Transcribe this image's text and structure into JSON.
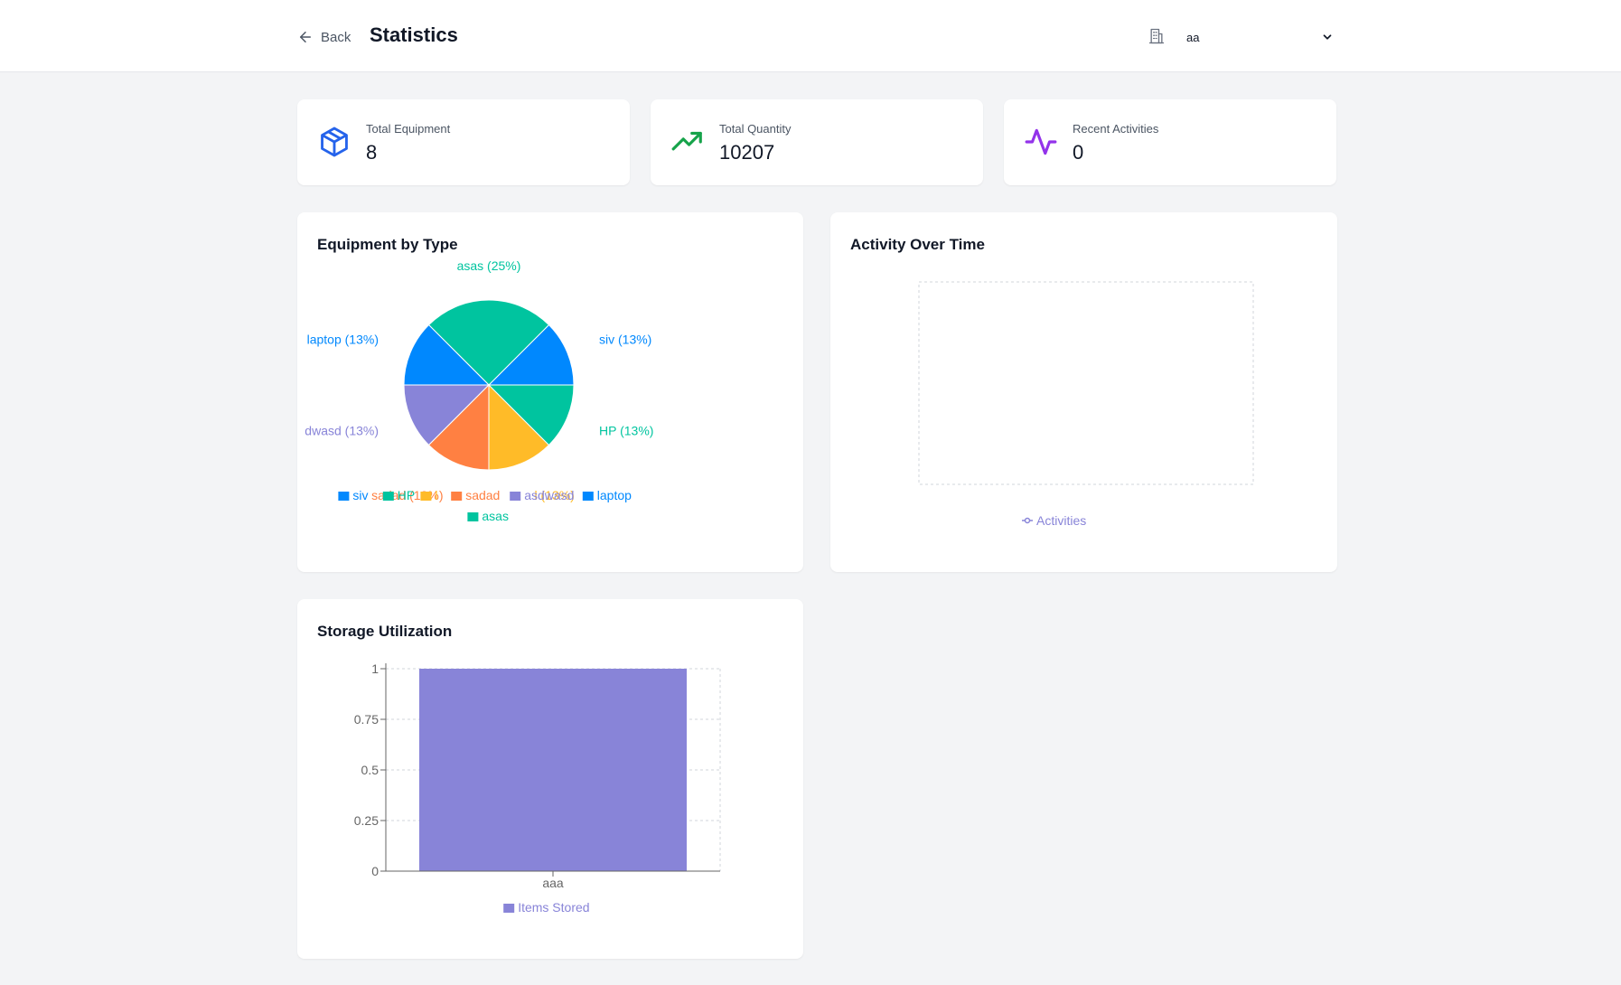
{
  "header": {
    "back_label": "Back",
    "title": "Statistics",
    "warehouse_selected": "aa"
  },
  "stats": [
    {
      "label": "Total Equipment",
      "value": "8",
      "icon": "box-icon",
      "color": "#2563eb"
    },
    {
      "label": "Total Quantity",
      "value": "10207",
      "icon": "trending-up-icon",
      "color": "#16a34a"
    },
    {
      "label": "Recent Activities",
      "value": "0",
      "icon": "activity-icon",
      "color": "#9333ea"
    }
  ],
  "equipment_by_type": {
    "title": "Equipment by Type"
  },
  "activity_over_time": {
    "title": "Activity Over Time"
  },
  "storage_utilization": {
    "title": "Storage Utilization"
  },
  "chart_data": [
    {
      "type": "pie",
      "title": "Equipment by Type",
      "slices": [
        {
          "name": "siv",
          "value": 1,
          "label": "siv (13%)",
          "color": "#0088fe"
        },
        {
          "name": "asas",
          "value": 2,
          "label": "asas (25%)",
          "color": "#00c49f"
        },
        {
          "name": "laptop",
          "value": 1,
          "label": "laptop (13%)",
          "color": "#0088fe"
        },
        {
          "name": "asdwasd",
          "value": 1,
          "label": "dwasd (13%)",
          "color": "#8884d8"
        },
        {
          "name": "sadad",
          "value": 1,
          "label": "sadad (13%)",
          "color": "#ff8042"
        },
        {
          "name": "l",
          "value": 1,
          "label": "l (13%)",
          "color": "#ffbb28"
        },
        {
          "name": "HP",
          "value": 1,
          "label": "HP (13%)",
          "color": "#00c49f"
        }
      ],
      "legend": [
        {
          "name": "siv",
          "color": "#0088fe"
        },
        {
          "name": "HP",
          "color": "#00c49f"
        },
        {
          "name": "l",
          "color": "#ffbb28"
        },
        {
          "name": "sadad",
          "color": "#ff8042"
        },
        {
          "name": "asdwasd",
          "color": "#8884d8"
        },
        {
          "name": "laptop",
          "color": "#0088fe"
        },
        {
          "name": "asas",
          "color": "#00c49f"
        }
      ]
    },
    {
      "type": "line",
      "title": "Activity Over Time",
      "series": [
        {
          "name": "Activities",
          "values": [],
          "color": "#8884d8"
        }
      ],
      "grid": true,
      "legend": "bottom"
    },
    {
      "type": "bar",
      "title": "Storage Utilization",
      "categories": [
        "aaa"
      ],
      "series": [
        {
          "name": "Items Stored",
          "values": [
            1
          ],
          "color": "#8884d8"
        }
      ],
      "ylim": [
        0,
        1
      ],
      "yticks": [
        "0",
        "0.25",
        "0.5",
        "0.75",
        "1"
      ],
      "grid": true,
      "legend": "bottom"
    }
  ]
}
